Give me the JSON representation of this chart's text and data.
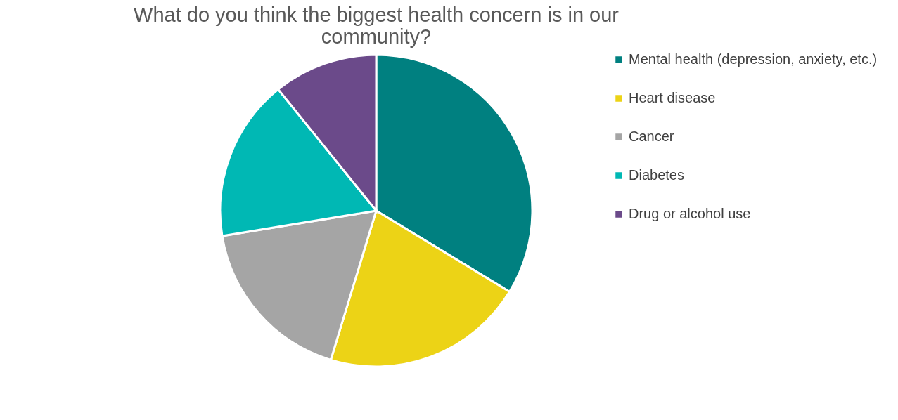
{
  "chart_data": {
    "type": "pie",
    "title": [
      "What do you think the biggest health concern is in our",
      "community?"
    ],
    "categories": [
      "Mental health (depression, anxiety, etc.)",
      "Heart disease",
      "Cancer",
      "Diabetes",
      "Drug or alcohol use"
    ],
    "values": [
      33.7,
      21,
      17.7,
      16.8,
      10.8
    ],
    "colors": [
      "#008080",
      "#ecd316",
      "#a5a5a5",
      "#00b8b4",
      "#6b4a8a"
    ],
    "legend": "right"
  }
}
